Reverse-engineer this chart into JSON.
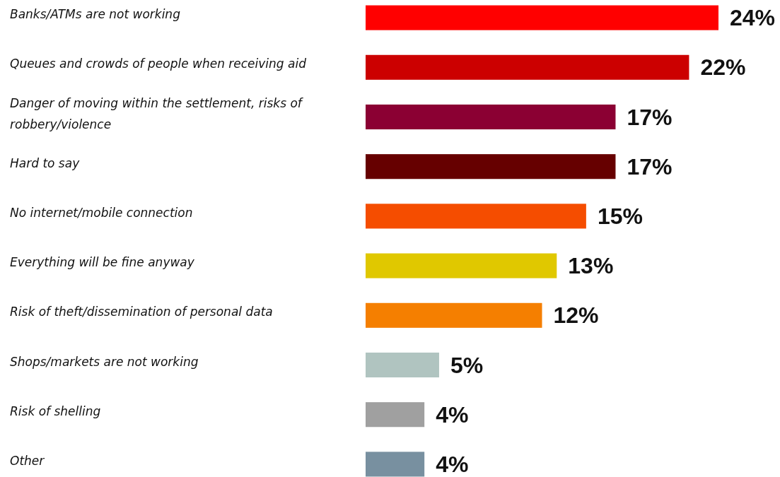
{
  "chart_data": {
    "type": "bar",
    "orientation": "horizontal",
    "value_labels": [
      "24%",
      "22%",
      "17%",
      "17%",
      "15%",
      "13%",
      "12%",
      "5%",
      "4%",
      "4%"
    ],
    "categories": [
      "Banks/ATMs are not working",
      "Queues and crowds of people when receiving aid",
      "Danger of moving within the settlement, risks of robbery/violence",
      "Hard to say",
      "No internet/mobile connection",
      "Everything will be fine anyway",
      "Risk of theft/dissemination of personal data",
      "Shops/markets are not working",
      "Risk of shelling",
      "Other"
    ],
    "values": [
      24,
      22,
      17,
      17,
      15,
      13,
      12,
      5,
      4,
      4
    ],
    "colors": [
      "#ff0000",
      "#cc0000",
      "#8b0033",
      "#660000",
      "#f54d00",
      "#e0c800",
      "#f57f00",
      "#b0c4c0",
      "#a0a0a0",
      "#7890a0"
    ]
  }
}
